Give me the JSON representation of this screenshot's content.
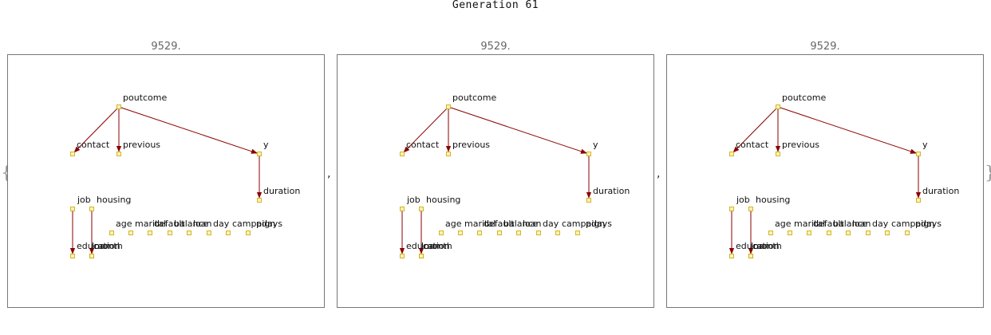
{
  "title": "Generation 61",
  "open_brace": "{",
  "close_brace": "}",
  "separator": ",",
  "colors": {
    "edge": "#8b0000",
    "node_fill": "#fff3b0",
    "node_stroke": "#c8a400",
    "frame": "#777777"
  },
  "panels": [
    {
      "score": "9529."
    },
    {
      "score": "9529."
    },
    {
      "score": "9529."
    }
  ],
  "graph": {
    "nodes": [
      {
        "id": "poutcome",
        "label": "poutcome"
      },
      {
        "id": "contact",
        "label": "contact"
      },
      {
        "id": "previous",
        "label": "previous"
      },
      {
        "id": "y",
        "label": "y"
      },
      {
        "id": "duration",
        "label": "duration"
      },
      {
        "id": "job",
        "label": "job"
      },
      {
        "id": "housing",
        "label": "housing"
      },
      {
        "id": "education",
        "label": "education"
      },
      {
        "id": "month",
        "label": "month"
      },
      {
        "id": "loan",
        "label": "loan"
      },
      {
        "id": "age",
        "label": "age"
      },
      {
        "id": "marital",
        "label": "marital"
      },
      {
        "id": "default",
        "label": "default"
      },
      {
        "id": "balance",
        "label": "balance"
      },
      {
        "id": "loan2",
        "label": "loan"
      },
      {
        "id": "day",
        "label": "day"
      },
      {
        "id": "campaign",
        "label": "campaign"
      },
      {
        "id": "pdays",
        "label": "pdays"
      }
    ],
    "edges": [
      {
        "from": "poutcome",
        "to": "contact"
      },
      {
        "from": "poutcome",
        "to": "previous"
      },
      {
        "from": "poutcome",
        "to": "y"
      },
      {
        "from": "y",
        "to": "duration"
      },
      {
        "from": "job",
        "to": "education"
      },
      {
        "from": "housing",
        "to": "month"
      }
    ]
  }
}
